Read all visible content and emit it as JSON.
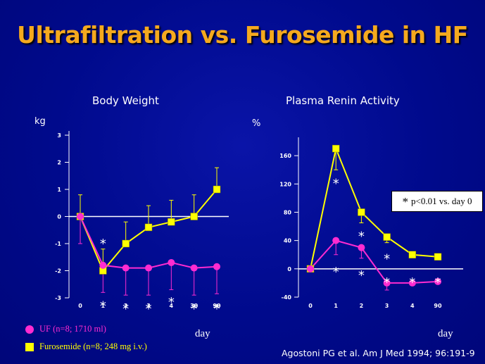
{
  "slide": {
    "title": "Ultrafiltration vs. Furosemide in HF",
    "citation": "Agostoni PG et al. Am J Med 1994; 96:191-9",
    "legend": [
      {
        "label": "UF (n=8; 1710 ml)",
        "color": "#ff2bd0",
        "shape": "circle"
      },
      {
        "label": "Furosemide (n=8; 248 mg i.v.)",
        "color": "#ffff00",
        "shape": "square"
      }
    ],
    "colors": {
      "uf": "#ff2bd0",
      "uf_line": "#ff2bd0",
      "furo": "#ffff00",
      "axis": "#ffffff"
    },
    "significance_note": {
      "star": "*",
      "text": "p<0.01 vs. day 0"
    }
  },
  "chart_data": [
    {
      "type": "line",
      "title": "Body Weight",
      "ylabel": "kg",
      "xlabel": "day",
      "categories": [
        "0",
        "1",
        "2",
        "3",
        "4",
        "30",
        "90"
      ],
      "ylim": [
        -3,
        3
      ],
      "yticks": [
        3,
        2,
        1,
        0,
        -1,
        -2,
        -3
      ],
      "series": [
        {
          "name": "Furosemide",
          "key": "furo",
          "marker": "square",
          "values": [
            0,
            -2.0,
            -1.0,
            -0.4,
            -0.2,
            0,
            1.0
          ],
          "err": [
            0.8,
            0.8,
            0.8,
            0.8,
            0.8,
            0.8,
            0.8
          ]
        },
        {
          "name": "UF",
          "key": "uf",
          "marker": "circle",
          "values": [
            0,
            -1.8,
            -1.9,
            -1.9,
            -1.7,
            -1.9,
            -1.85
          ],
          "err": [
            1.0,
            1.0,
            1.0,
            1.0,
            1.0,
            1.0,
            1.0
          ]
        }
      ],
      "stars": [
        {
          "index": 1,
          "value": -0.9
        },
        {
          "index": 1,
          "value": -3.2
        },
        {
          "index": 2,
          "value": -3.3
        },
        {
          "index": 3,
          "value": -3.3
        },
        {
          "index": 4,
          "value": -3.05
        },
        {
          "index": 5,
          "value": -3.3
        },
        {
          "index": 6,
          "value": -3.3
        }
      ]
    },
    {
      "type": "line",
      "title": "Plasma Renin Activity",
      "ylabel": "%",
      "xlabel": "day",
      "categories": [
        "0",
        "1",
        "2",
        "3",
        "4",
        "90"
      ],
      "ylim": [
        -40,
        180
      ],
      "yticks": [
        160,
        120,
        80,
        40,
        0,
        -40
      ],
      "series": [
        {
          "name": "Furosemide",
          "key": "furo",
          "marker": "square",
          "values": [
            0,
            170,
            80,
            45,
            20,
            17
          ],
          "err": [
            0,
            30,
            15,
            8,
            0,
            0
          ]
        },
        {
          "name": "UF",
          "key": "uf",
          "marker": "circle",
          "values": [
            0,
            40,
            30,
            -20,
            -20,
            -18
          ],
          "err": [
            0,
            20,
            15,
            10,
            0,
            0
          ]
        }
      ],
      "stars": [
        {
          "index": 1,
          "value": 125
        },
        {
          "index": 2,
          "value": 50
        },
        {
          "index": 3,
          "value": 18
        },
        {
          "index": 1,
          "value": 0
        },
        {
          "index": 2,
          "value": -5
        },
        {
          "index": 3,
          "value": -15
        },
        {
          "index": 4,
          "value": -15
        },
        {
          "index": 5,
          "value": -15
        }
      ]
    }
  ]
}
